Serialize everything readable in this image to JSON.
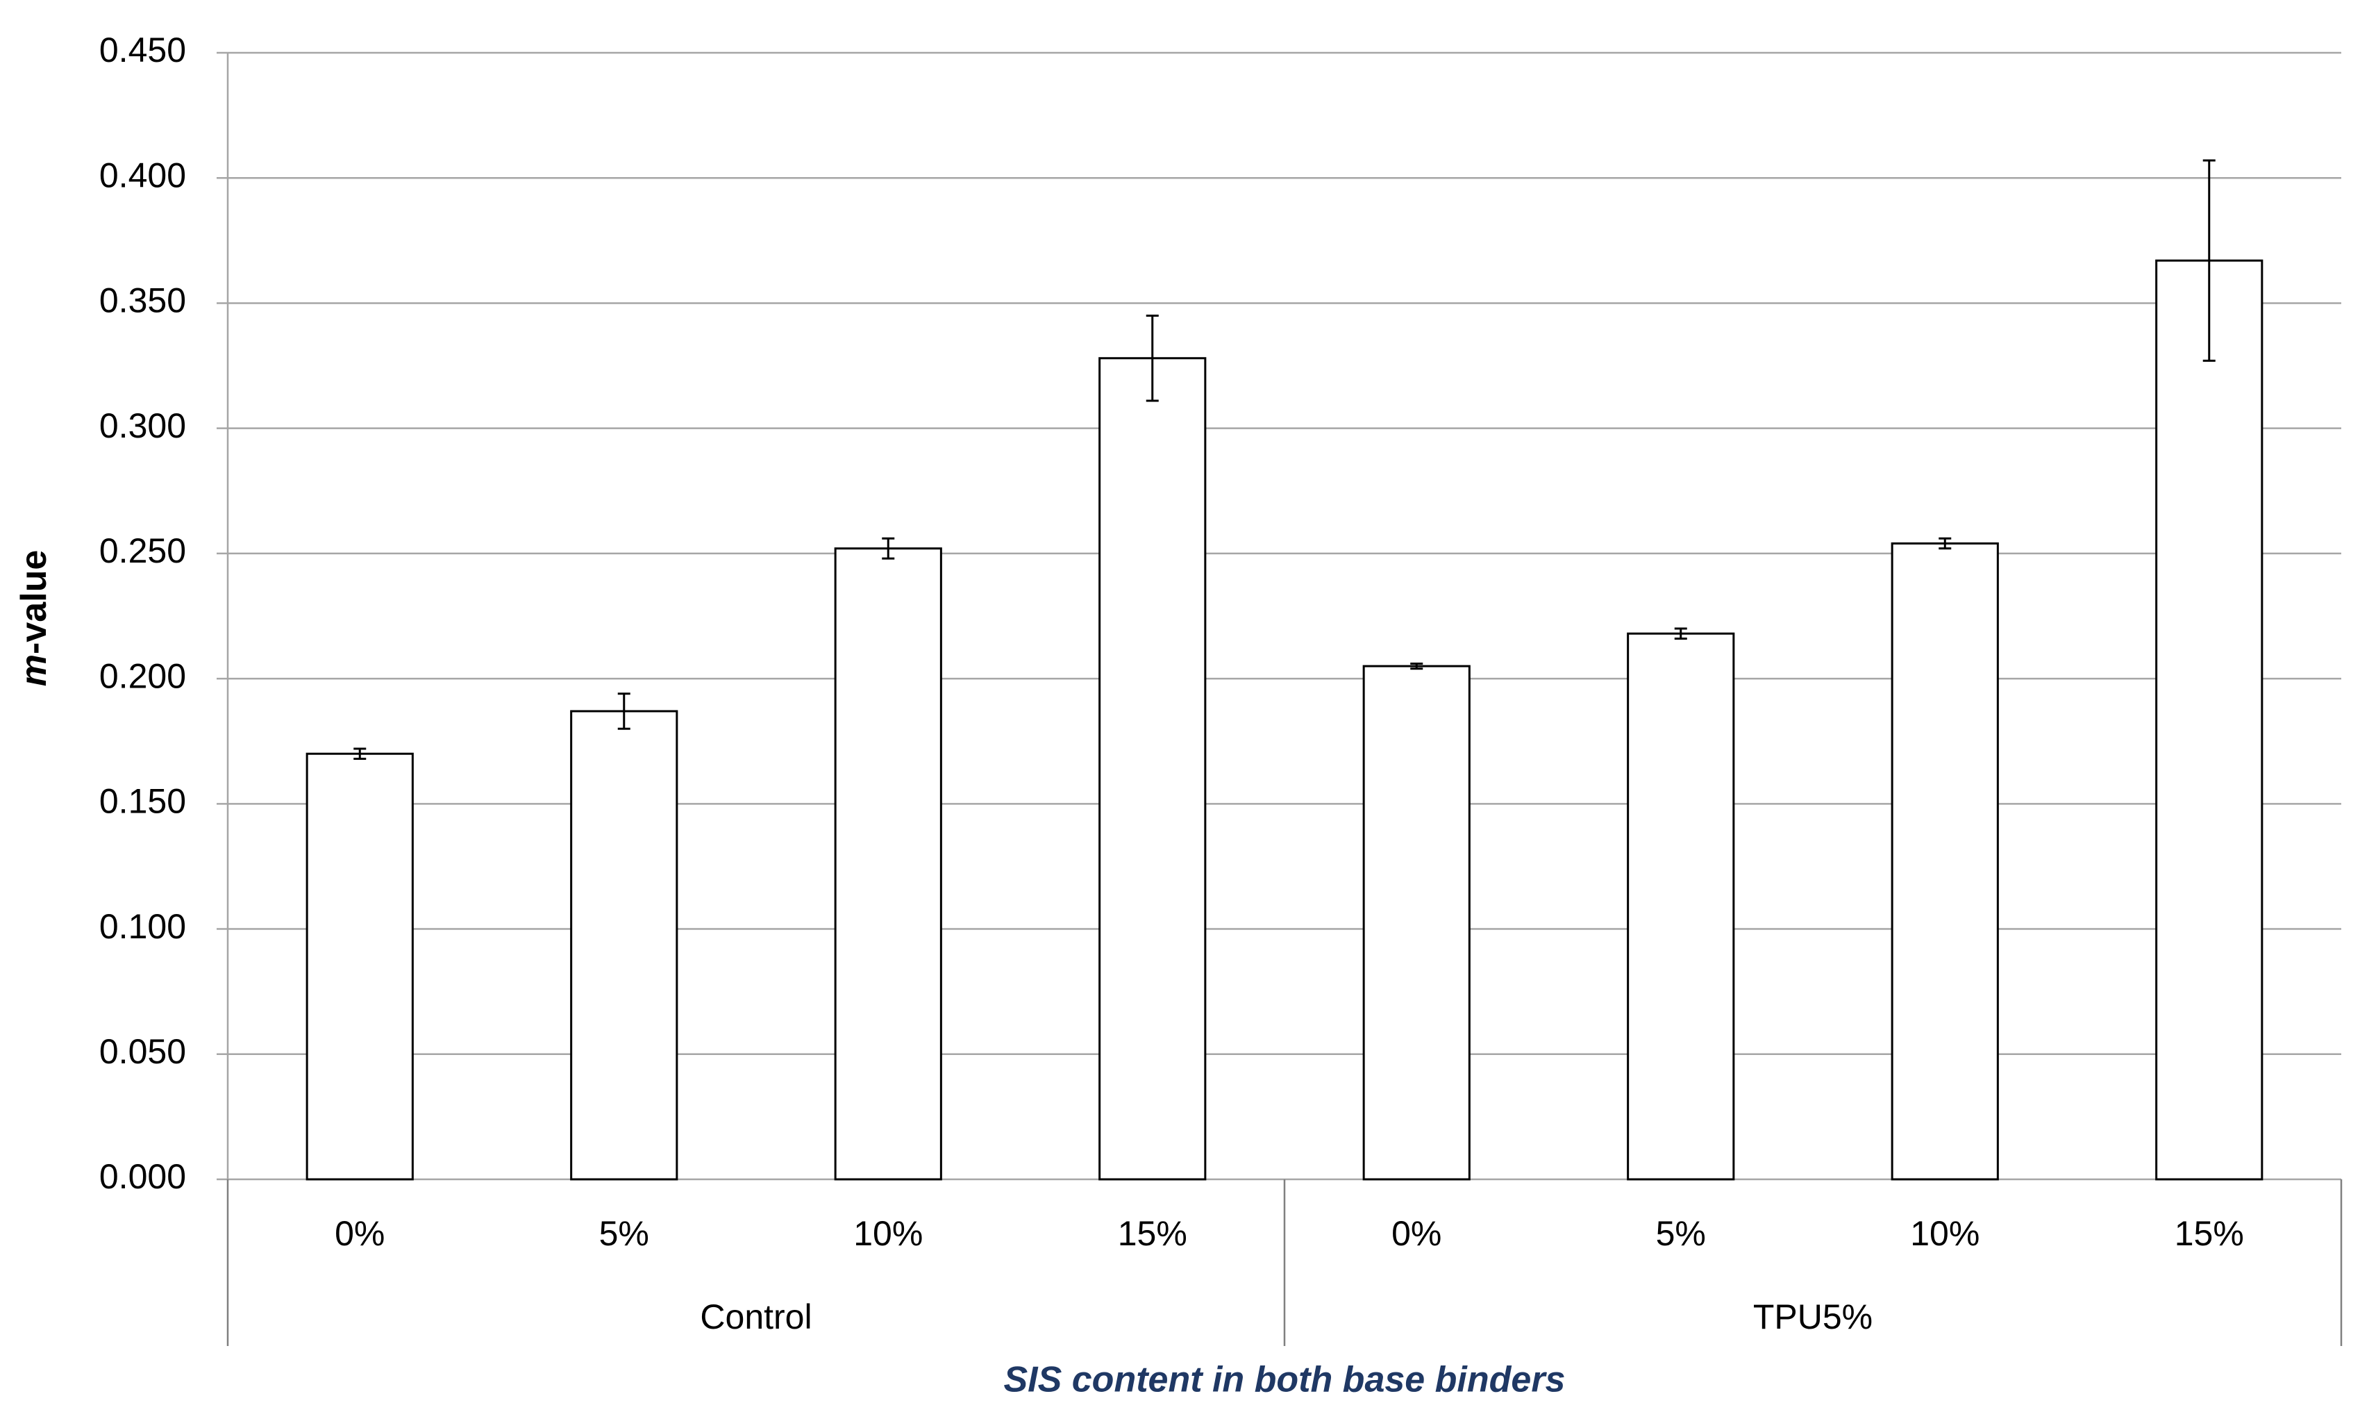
{
  "chart_data": {
    "type": "bar",
    "y_label": "m-value",
    "x_label": "SIS content in both base binders",
    "categories": [
      "0%",
      "5%",
      "10%",
      "15%",
      "0%",
      "5%",
      "10%",
      "15%"
    ],
    "groups": [
      "Control",
      "TPU5%"
    ],
    "values": [
      0.17,
      0.187,
      0.252,
      0.328,
      0.205,
      0.218,
      0.254,
      0.367
    ],
    "errors": [
      0.002,
      0.007,
      0.004,
      0.017,
      0.001,
      0.002,
      0.002,
      0.04
    ],
    "color": "#ffffff",
    "edge_color": "#000000",
    "x_label_color": "#1f3864",
    "ylim": [
      0,
      0.45
    ],
    "yticks": [
      {
        "value": 0,
        "label": "0.000"
      },
      {
        "value": 0.05,
        "label": "0.050"
      },
      {
        "value": 0.1,
        "label": "0.100"
      },
      {
        "value": 0.15,
        "label": "0.150"
      },
      {
        "value": 0.2,
        "label": "0.200"
      },
      {
        "value": 0.25,
        "label": "0.250"
      },
      {
        "value": 0.3,
        "label": "0.300"
      },
      {
        "value": 0.35,
        "label": "0.350"
      },
      {
        "value": 0.4,
        "label": "0.400"
      },
      {
        "value": 0.45,
        "label": "0.450"
      }
    ],
    "grid": true
  }
}
